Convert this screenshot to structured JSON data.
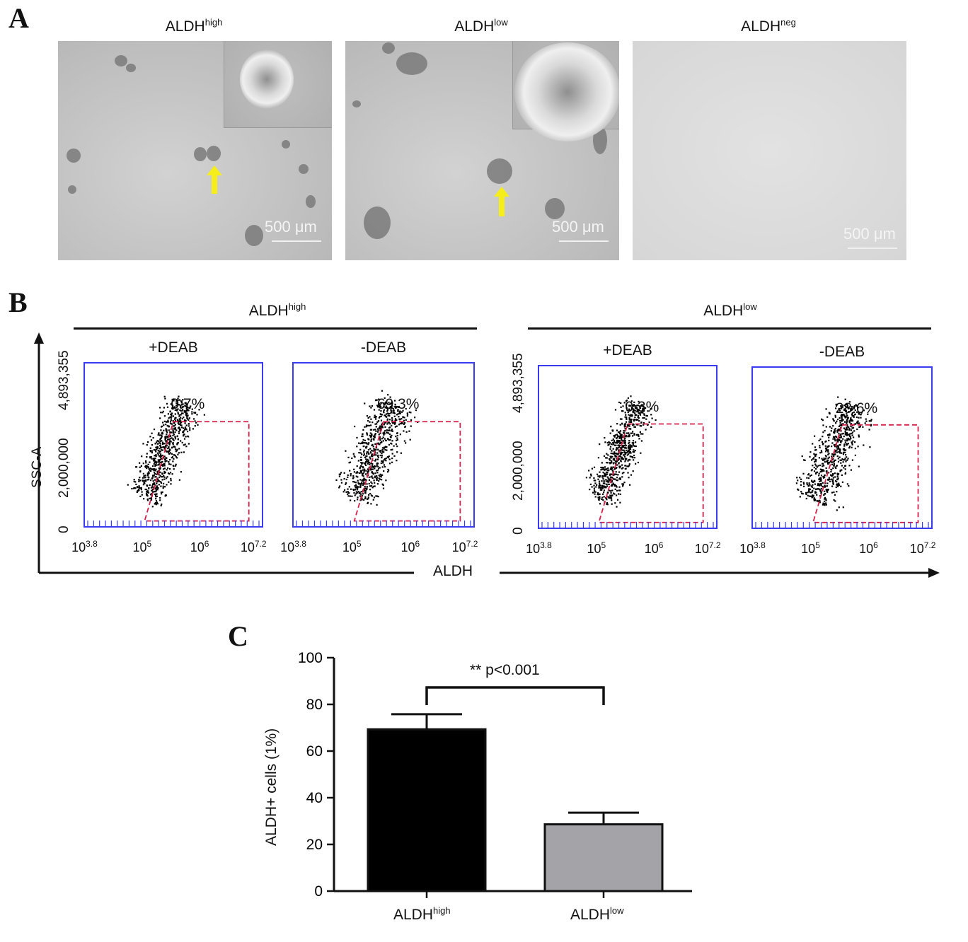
{
  "panel_a": {
    "letter": "A",
    "images": [
      {
        "base": "ALDH",
        "sup": "high",
        "scale": "500 μm"
      },
      {
        "base": "ALDH",
        "sup": "low",
        "scale": "500 μm"
      },
      {
        "base": "ALDH",
        "sup": "neg",
        "scale": "500 μm"
      }
    ]
  },
  "panel_b": {
    "letter": "B",
    "groups": [
      {
        "base": "ALDH",
        "sup": "high"
      },
      {
        "base": "ALDH",
        "sup": "low"
      }
    ],
    "plots": [
      {
        "condition": "+DEAB",
        "percent": "0.7%"
      },
      {
        "condition": "-DEAB",
        "percent": "69.3%"
      },
      {
        "condition": "+DEAB",
        "percent": "0.3%"
      },
      {
        "condition": "-DEAB",
        "percent": "28.6%"
      }
    ],
    "y_axis_label": "SSC-A",
    "y_ticks": [
      "0",
      "2,000,000",
      "4,893,355"
    ],
    "x_ticks": [
      {
        "base": "10",
        "sup": "3.8"
      },
      {
        "base": "10",
        "sup": "5"
      },
      {
        "base": "10",
        "sup": "6"
      },
      {
        "base": "10",
        "sup": "7.2"
      }
    ],
    "x_axis_label": "ALDH"
  },
  "panel_c": {
    "letter": "C",
    "significance": "** p<0.001"
  },
  "chart_data": {
    "type": "bar",
    "categories": [
      "ALDHhigh",
      "ALDHlow"
    ],
    "category_labels": [
      {
        "base": "ALDH",
        "sup": "high"
      },
      {
        "base": "ALDH",
        "sup": "low"
      }
    ],
    "values": [
      69.3,
      28.6
    ],
    "errors": [
      6.5,
      5.0
    ],
    "colors": [
      "#000000",
      "#a4a4a8"
    ],
    "ylabel": "ALDH+ cells (1%)",
    "ylim": [
      0,
      100
    ],
    "yticks": [
      0,
      20,
      40,
      60,
      80,
      100
    ],
    "annotation": "** p<0.001",
    "grid": false
  }
}
